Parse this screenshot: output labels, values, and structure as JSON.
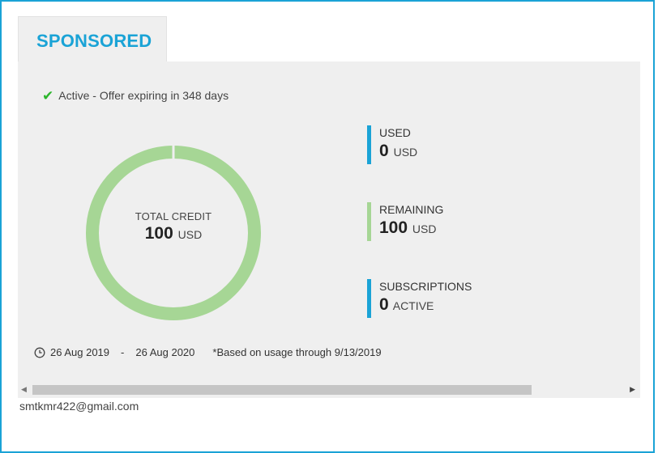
{
  "tab": {
    "label": "SPONSORED"
  },
  "status": {
    "icon": "check-icon",
    "text": "Active - Offer expiring in 348 days",
    "color": "#2bb52b"
  },
  "credit": {
    "label": "TOTAL CREDIT",
    "value": "100",
    "unit": "USD",
    "used_fraction": 0.0,
    "ring_color": "#a6d695"
  },
  "stats": [
    {
      "title": "USED",
      "value": "0",
      "unit": "USD",
      "bar_color": "#1aa3d6"
    },
    {
      "title": "REMAINING",
      "value": "100",
      "unit": "USD",
      "bar_color": "#a6d695"
    },
    {
      "title": "SUBSCRIPTIONS",
      "value": "0",
      "unit": "ACTIVE",
      "bar_color": "#1aa3d6"
    }
  ],
  "period": {
    "icon": "clock-icon",
    "start": "26 Aug 2019",
    "separator": "-",
    "end": "26 Aug 2020",
    "note": "*Based on usage through 9/13/2019"
  },
  "scrollbar": {
    "position_fraction": 0.0
  },
  "account": {
    "email": "smtkmr422@gmail.com"
  },
  "colors": {
    "accent": "#1aa3d6",
    "panel_bg": "#efefef"
  }
}
